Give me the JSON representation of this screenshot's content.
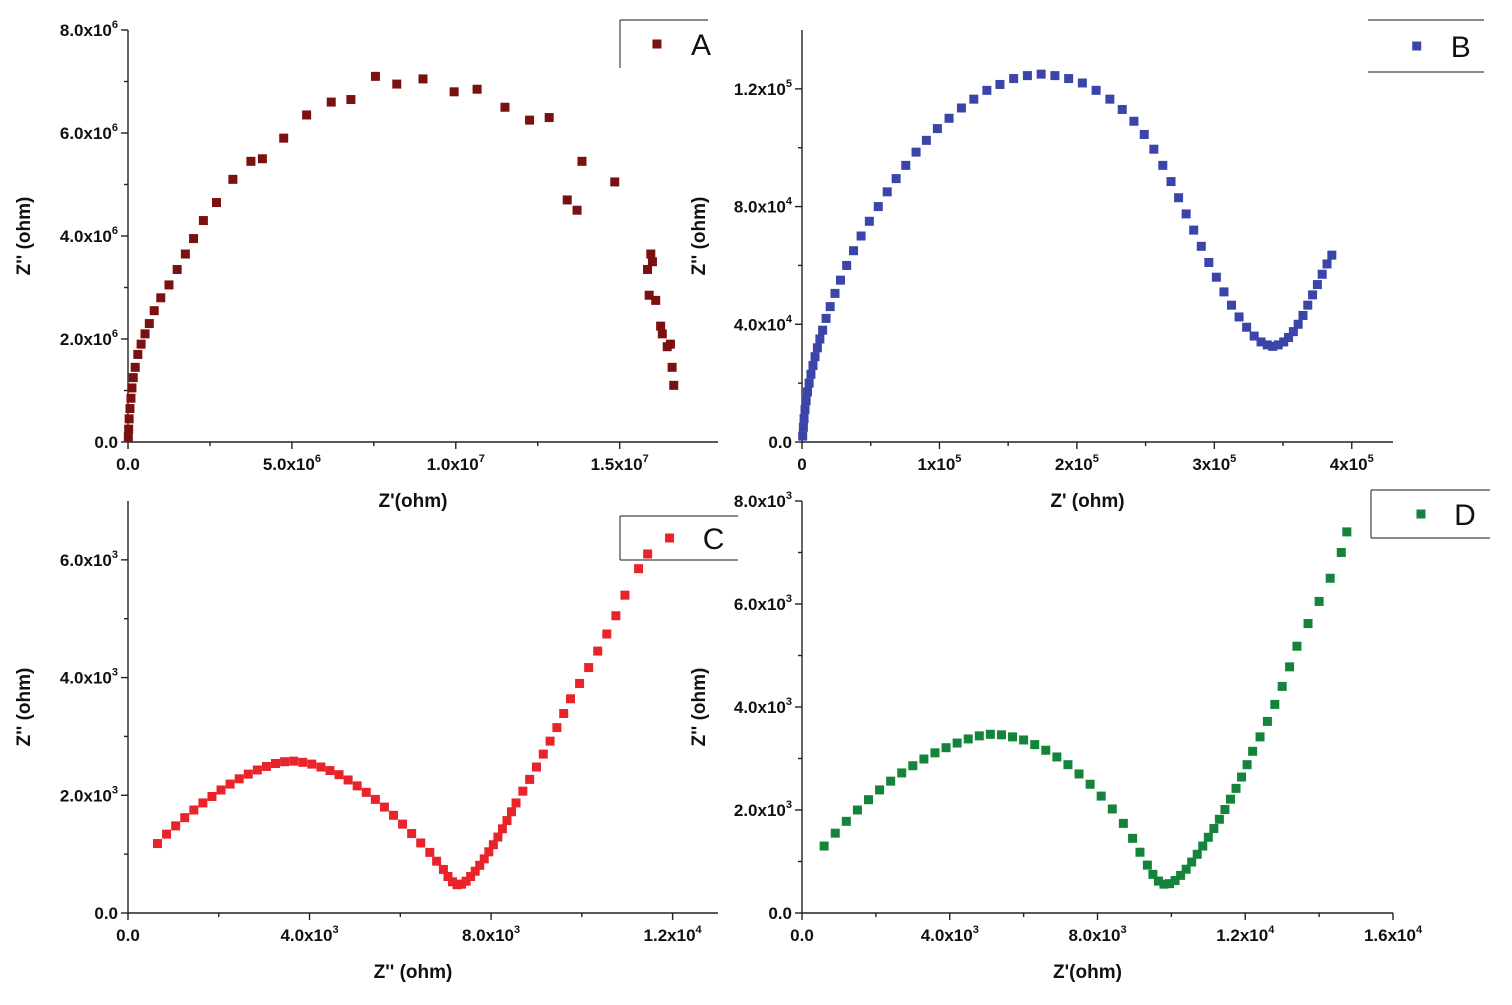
{
  "chart_data": [
    {
      "id": "A",
      "type": "scatter",
      "legend": "A",
      "color": "#7b1010",
      "xlabel": "Z'(ohm)",
      "ylabel": "Z'' (ohm)",
      "xlim": [
        0,
        18000000
      ],
      "ylim": [
        0,
        8000000
      ],
      "xticks": [
        {
          "value": 0,
          "mant": "0.0",
          "exp": ""
        },
        {
          "value": 5000000,
          "mant": "5.0x10",
          "exp": "6"
        },
        {
          "value": 10000000,
          "mant": "1.0x10",
          "exp": "7"
        },
        {
          "value": 15000000,
          "mant": "1.5x10",
          "exp": "7"
        }
      ],
      "yticks": [
        {
          "value": 0,
          "mant": "0.0",
          "exp": ""
        },
        {
          "value": 2000000,
          "mant": "2.0x10",
          "exp": "6"
        },
        {
          "value": 4000000,
          "mant": "4.0x10",
          "exp": "6"
        },
        {
          "value": 6000000,
          "mant": "6.0x10",
          "exp": "6"
        },
        {
          "value": 8000000,
          "mant": "8.0x10",
          "exp": "6"
        }
      ],
      "points": [
        [
          10000,
          100000
        ],
        [
          20000,
          250000
        ],
        [
          35000,
          450000
        ],
        [
          60000,
          650000
        ],
        [
          90000,
          850000
        ],
        [
          120000,
          1050000
        ],
        [
          160000,
          1250000
        ],
        [
          220000,
          1450000
        ],
        [
          300000,
          1700000
        ],
        [
          400000,
          1900000
        ],
        [
          520000,
          2100000
        ],
        [
          650000,
          2300000
        ],
        [
          800000,
          2550000
        ],
        [
          1000000,
          2800000
        ],
        [
          1250000,
          3050000
        ],
        [
          1500000,
          3350000
        ],
        [
          1750000,
          3650000
        ],
        [
          2000000,
          3950000
        ],
        [
          2300000,
          4300000
        ],
        [
          2700000,
          4650000
        ],
        [
          3200000,
          5100000
        ],
        [
          3750000,
          5450000
        ],
        [
          4100000,
          5500000
        ],
        [
          4750000,
          5900000
        ],
        [
          5450000,
          6350000
        ],
        [
          6200000,
          6600000
        ],
        [
          6800000,
          6650000
        ],
        [
          7550000,
          7100000
        ],
        [
          8200000,
          6950000
        ],
        [
          9000000,
          7050000
        ],
        [
          9950000,
          6800000
        ],
        [
          10650000,
          6850000
        ],
        [
          11500000,
          6500000
        ],
        [
          12250000,
          6250000
        ],
        [
          12850000,
          6300000
        ],
        [
          13400000,
          4700000
        ],
        [
          13700000,
          4500000
        ],
        [
          13850000,
          5450000
        ],
        [
          14850000,
          5050000
        ],
        [
          15850000,
          3350000
        ],
        [
          15950000,
          3650000
        ],
        [
          16000000,
          3500000
        ],
        [
          15900000,
          2850000
        ],
        [
          16100000,
          2750000
        ],
        [
          16250000,
          2250000
        ],
        [
          16300000,
          2100000
        ],
        [
          16450000,
          1850000
        ],
        [
          16550000,
          1900000
        ],
        [
          16600000,
          1450000
        ],
        [
          16650000,
          1100000
        ]
      ]
    },
    {
      "id": "B",
      "type": "scatter",
      "legend": "B",
      "color": "#3b44a8",
      "xlabel": "Z' (ohm)",
      "ylabel": "Z'' (ohm)",
      "xlim": [
        0,
        430000
      ],
      "ylim": [
        0,
        140000
      ],
      "xticks": [
        {
          "value": 0,
          "mant": "0",
          "exp": ""
        },
        {
          "value": 100000,
          "mant": "1x10",
          "exp": "5"
        },
        {
          "value": 200000,
          "mant": "2x10",
          "exp": "5"
        },
        {
          "value": 300000,
          "mant": "3x10",
          "exp": "5"
        },
        {
          "value": 400000,
          "mant": "4x10",
          "exp": "5"
        }
      ],
      "yticks": [
        {
          "value": 0,
          "mant": "0.0",
          "exp": ""
        },
        {
          "value": 40000,
          "mant": "4.0x10",
          "exp": "4"
        },
        {
          "value": 80000,
          "mant": "8.0x10",
          "exp": "4"
        },
        {
          "value": 120000,
          "mant": "1.2x10",
          "exp": "5"
        }
      ],
      "points": [
        [
          500,
          2000
        ],
        [
          1000,
          5000
        ],
        [
          1500,
          8000
        ],
        [
          2200,
          11000
        ],
        [
          3000,
          14000
        ],
        [
          4000,
          17000
        ],
        [
          5200,
          20000
        ],
        [
          6500,
          23000
        ],
        [
          8000,
          26000
        ],
        [
          9500,
          29000
        ],
        [
          11200,
          32000
        ],
        [
          13000,
          35000
        ],
        [
          15000,
          38000
        ],
        [
          17500,
          42000
        ],
        [
          20500,
          46000
        ],
        [
          24000,
          50500
        ],
        [
          28000,
          55000
        ],
        [
          32500,
          60000
        ],
        [
          37500,
          65000
        ],
        [
          43000,
          70000
        ],
        [
          49000,
          75000
        ],
        [
          55500,
          80000
        ],
        [
          62000,
          85000
        ],
        [
          68500,
          89500
        ],
        [
          75500,
          94000
        ],
        [
          83000,
          98500
        ],
        [
          90500,
          102500
        ],
        [
          98500,
          106500
        ],
        [
          107000,
          110000
        ],
        [
          116000,
          113500
        ],
        [
          125000,
          116500
        ],
        [
          134500,
          119500
        ],
        [
          144000,
          121500
        ],
        [
          154000,
          123500
        ],
        [
          164000,
          124500
        ],
        [
          174000,
          125000
        ],
        [
          184000,
          124500
        ],
        [
          194000,
          123500
        ],
        [
          204000,
          122000
        ],
        [
          214000,
          119500
        ],
        [
          224000,
          116500
        ],
        [
          233000,
          113000
        ],
        [
          241500,
          109000
        ],
        [
          249000,
          104500
        ],
        [
          256000,
          99500
        ],
        [
          262500,
          94000
        ],
        [
          268500,
          88500
        ],
        [
          274000,
          83000
        ],
        [
          279500,
          77500
        ],
        [
          285000,
          72000
        ],
        [
          290500,
          66500
        ],
        [
          296000,
          61000
        ],
        [
          301500,
          56000
        ],
        [
          307000,
          51000
        ],
        [
          312500,
          46500
        ],
        [
          318000,
          42500
        ],
        [
          323500,
          39000
        ],
        [
          329000,
          36000
        ],
        [
          334000,
          34000
        ],
        [
          338500,
          33000
        ],
        [
          342500,
          32500
        ],
        [
          346500,
          33000
        ],
        [
          350500,
          34000
        ],
        [
          354000,
          35500
        ],
        [
          357500,
          37500
        ],
        [
          361000,
          40000
        ],
        [
          364500,
          43000
        ],
        [
          368000,
          46500
        ],
        [
          371500,
          50000
        ],
        [
          375000,
          53500
        ],
        [
          378500,
          57000
        ],
        [
          382000,
          60500
        ],
        [
          385500,
          63500
        ]
      ]
    },
    {
      "id": "C",
      "type": "scatter",
      "legend": "C",
      "color": "#e8232a",
      "xlabel": "Z'' (ohm)",
      "ylabel": "Z'' (ohm)",
      "xlim": [
        0,
        13000
      ],
      "ylim": [
        0,
        7000
      ],
      "xticks": [
        {
          "value": 0,
          "mant": "0.0",
          "exp": ""
        },
        {
          "value": 4000,
          "mant": "4.0x10",
          "exp": "3"
        },
        {
          "value": 8000,
          "mant": "8.0x10",
          "exp": "3"
        },
        {
          "value": 12000,
          "mant": "1.2x10",
          "exp": "4"
        }
      ],
      "yticks": [
        {
          "value": 0,
          "mant": "0.0",
          "exp": ""
        },
        {
          "value": 2000,
          "mant": "2.0x10",
          "exp": "3"
        },
        {
          "value": 4000,
          "mant": "4.0x10",
          "exp": "3"
        },
        {
          "value": 6000,
          "mant": "6.0x10",
          "exp": "3"
        }
      ],
      "points": [
        [
          650,
          1180
        ],
        [
          850,
          1340
        ],
        [
          1050,
          1480
        ],
        [
          1250,
          1620
        ],
        [
          1450,
          1750
        ],
        [
          1650,
          1870
        ],
        [
          1850,
          1980
        ],
        [
          2050,
          2090
        ],
        [
          2250,
          2190
        ],
        [
          2450,
          2280
        ],
        [
          2650,
          2360
        ],
        [
          2850,
          2430
        ],
        [
          3050,
          2490
        ],
        [
          3250,
          2540
        ],
        [
          3450,
          2570
        ],
        [
          3650,
          2580
        ],
        [
          3850,
          2560
        ],
        [
          4050,
          2530
        ],
        [
          4250,
          2480
        ],
        [
          4450,
          2420
        ],
        [
          4650,
          2350
        ],
        [
          4850,
          2260
        ],
        [
          5050,
          2160
        ],
        [
          5250,
          2050
        ],
        [
          5450,
          1930
        ],
        [
          5650,
          1800
        ],
        [
          5850,
          1660
        ],
        [
          6050,
          1510
        ],
        [
          6250,
          1350
        ],
        [
          6450,
          1190
        ],
        [
          6650,
          1030
        ],
        [
          6800,
          880
        ],
        [
          6950,
          740
        ],
        [
          7050,
          620
        ],
        [
          7150,
          530
        ],
        [
          7250,
          480
        ],
        [
          7350,
          490
        ],
        [
          7450,
          540
        ],
        [
          7550,
          620
        ],
        [
          7650,
          710
        ],
        [
          7750,
          810
        ],
        [
          7850,
          920
        ],
        [
          7950,
          1040
        ],
        [
          8050,
          1160
        ],
        [
          8150,
          1290
        ],
        [
          8250,
          1430
        ],
        [
          8350,
          1570
        ],
        [
          8450,
          1720
        ],
        [
          8550,
          1870
        ],
        [
          8700,
          2070
        ],
        [
          8850,
          2270
        ],
        [
          9000,
          2480
        ],
        [
          9150,
          2700
        ],
        [
          9300,
          2920
        ],
        [
          9450,
          3150
        ],
        [
          9600,
          3390
        ],
        [
          9750,
          3640
        ],
        [
          9950,
          3900
        ],
        [
          10150,
          4170
        ],
        [
          10350,
          4450
        ],
        [
          10550,
          4740
        ],
        [
          10750,
          5050
        ],
        [
          10950,
          5400
        ],
        [
          11250,
          5850
        ],
        [
          11450,
          6100
        ]
      ]
    },
    {
      "id": "D",
      "type": "scatter",
      "legend": "D",
      "color": "#14843a",
      "xlabel": "Z'(ohm)",
      "ylabel": "Z'' (ohm)",
      "xlim": [
        0,
        16000
      ],
      "ylim": [
        0,
        8000
      ],
      "xticks": [
        {
          "value": 0,
          "mant": "0.0",
          "exp": ""
        },
        {
          "value": 4000,
          "mant": "4.0x10",
          "exp": "3"
        },
        {
          "value": 8000,
          "mant": "8.0x10",
          "exp": "3"
        },
        {
          "value": 12000,
          "mant": "1.2x10",
          "exp": "4"
        },
        {
          "value": 16000,
          "mant": "1.6x10",
          "exp": "4"
        }
      ],
      "yticks": [
        {
          "value": 0,
          "mant": "0.0",
          "exp": ""
        },
        {
          "value": 2000,
          "mant": "2.0x10",
          "exp": "3"
        },
        {
          "value": 4000,
          "mant": "4.0x10",
          "exp": "3"
        },
        {
          "value": 6000,
          "mant": "6.0x10",
          "exp": "3"
        },
        {
          "value": 8000,
          "mant": "8.0x10",
          "exp": "3"
        }
      ],
      "points": [
        [
          600,
          1300
        ],
        [
          900,
          1550
        ],
        [
          1200,
          1780
        ],
        [
          1500,
          2000
        ],
        [
          1800,
          2200
        ],
        [
          2100,
          2390
        ],
        [
          2400,
          2560
        ],
        [
          2700,
          2720
        ],
        [
          3000,
          2860
        ],
        [
          3300,
          2990
        ],
        [
          3600,
          3110
        ],
        [
          3900,
          3210
        ],
        [
          4200,
          3300
        ],
        [
          4500,
          3380
        ],
        [
          4800,
          3440
        ],
        [
          5100,
          3470
        ],
        [
          5400,
          3460
        ],
        [
          5700,
          3420
        ],
        [
          6000,
          3360
        ],
        [
          6300,
          3270
        ],
        [
          6600,
          3160
        ],
        [
          6900,
          3030
        ],
        [
          7200,
          2880
        ],
        [
          7500,
          2700
        ],
        [
          7800,
          2500
        ],
        [
          8100,
          2270
        ],
        [
          8400,
          2020
        ],
        [
          8700,
          1740
        ],
        [
          8950,
          1450
        ],
        [
          9150,
          1180
        ],
        [
          9350,
          930
        ],
        [
          9500,
          750
        ],
        [
          9650,
          620
        ],
        [
          9800,
          560
        ],
        [
          9950,
          570
        ],
        [
          10100,
          630
        ],
        [
          10250,
          730
        ],
        [
          10400,
          850
        ],
        [
          10550,
          990
        ],
        [
          10700,
          1140
        ],
        [
          10850,
          1300
        ],
        [
          11000,
          1470
        ],
        [
          11150,
          1640
        ],
        [
          11300,
          1820
        ],
        [
          11450,
          2010
        ],
        [
          11600,
          2210
        ],
        [
          11750,
          2420
        ],
        [
          11900,
          2640
        ],
        [
          12050,
          2880
        ],
        [
          12200,
          3140
        ],
        [
          12400,
          3420
        ],
        [
          12600,
          3720
        ],
        [
          12800,
          4050
        ],
        [
          13000,
          4400
        ],
        [
          13200,
          4780
        ],
        [
          13400,
          5180
        ],
        [
          13700,
          5620
        ],
        [
          14000,
          6050
        ],
        [
          14300,
          6500
        ],
        [
          14600,
          7000
        ],
        [
          14750,
          7400
        ]
      ]
    }
  ]
}
